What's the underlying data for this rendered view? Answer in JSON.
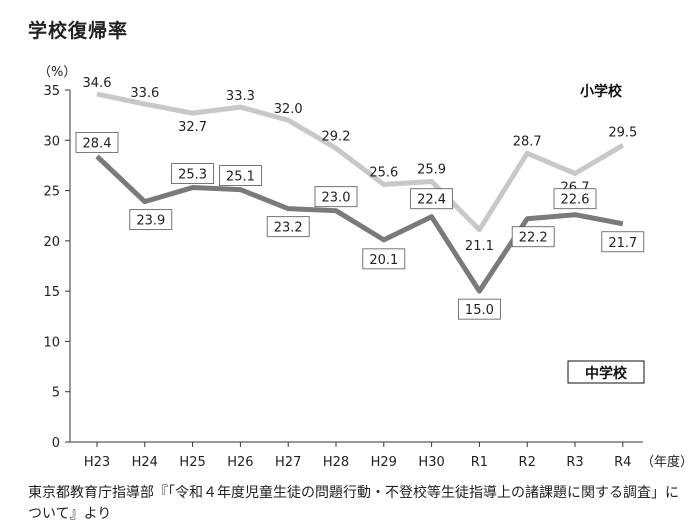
{
  "title": "学校復帰率",
  "source": "東京都教育庁指導部『「令和４年度児童生徒の問題行動・不登校等生徒指導上の諸課題に関する調査」について』より",
  "chart_data": {
    "type": "line",
    "y_unit_label": "（%）",
    "x_unit_label": "（年度）",
    "ylim": [
      0,
      35
    ],
    "yticks": [
      0,
      5,
      10,
      15,
      20,
      25,
      30,
      35
    ],
    "categories": [
      "H23",
      "H24",
      "H25",
      "H26",
      "H27",
      "H28",
      "H29",
      "H30",
      "R1",
      "R2",
      "R3",
      "R4"
    ],
    "grid": false,
    "series": [
      {
        "name": "小学校",
        "color": "#c8c8c8",
        "values": [
          34.6,
          33.6,
          32.7,
          33.3,
          32.0,
          29.2,
          25.6,
          25.9,
          21.1,
          28.7,
          26.7,
          29.5
        ],
        "labels": [
          "34.6",
          "33.6",
          "32.7",
          "33.3",
          "32.0",
          "29.2",
          "25.6",
          "25.9",
          "21.1",
          "28.7",
          "26.7",
          "29.5"
        ]
      },
      {
        "name": "中学校",
        "color": "#7a7a7a",
        "values": [
          28.4,
          23.9,
          25.3,
          25.1,
          23.2,
          23.0,
          20.1,
          22.4,
          15.0,
          22.2,
          22.6,
          21.7
        ],
        "labels": [
          "28.4",
          "23.9",
          "25.3",
          "25.1",
          "23.2",
          "23.0",
          "20.1",
          "22.4",
          "15.0",
          "22.2",
          "22.6",
          "21.7"
        ]
      }
    ]
  }
}
